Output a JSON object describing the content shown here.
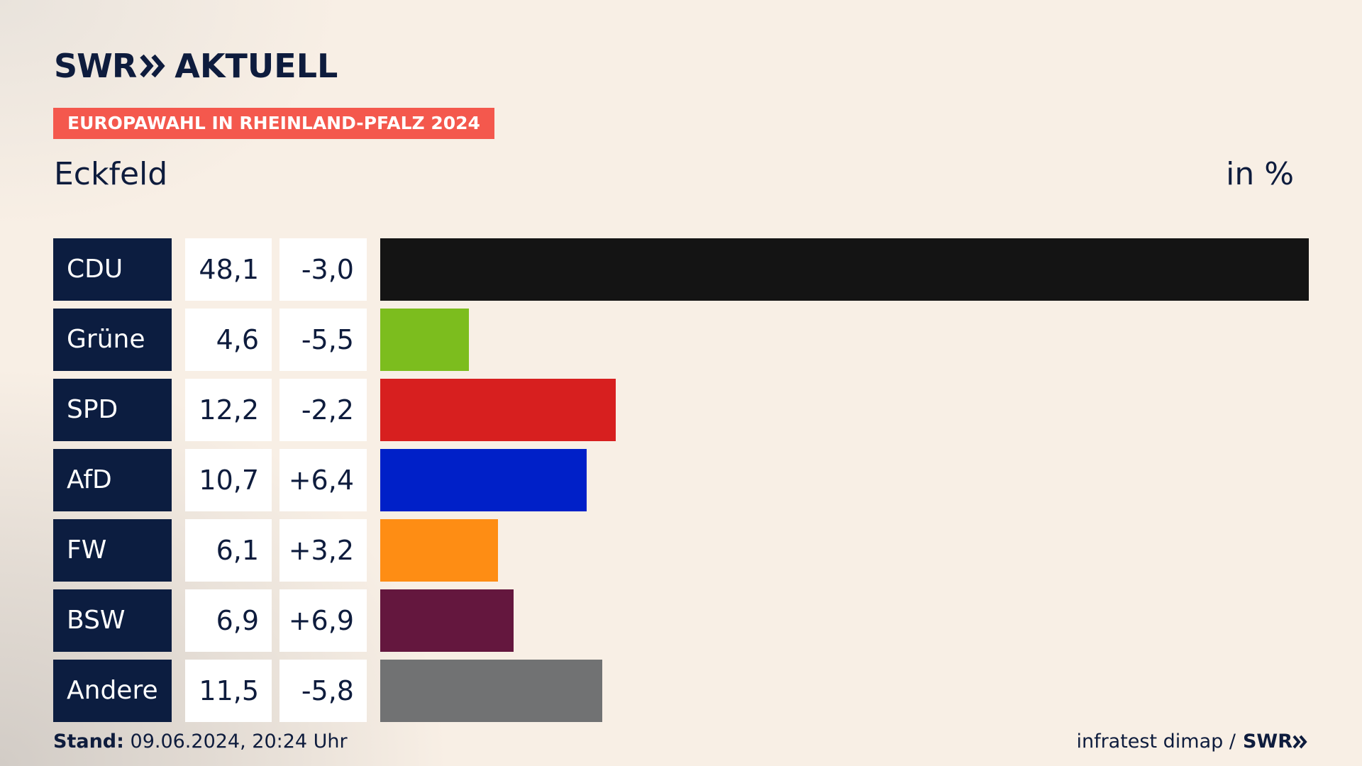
{
  "header": {
    "logo_swr": "SWR",
    "logo_aktuell": "AKTUELL",
    "badge": "EUROPAWAHL IN RHEINLAND-PFALZ 2024",
    "place": "Eckfeld",
    "unit": "in %"
  },
  "colors": {
    "navy": "#0c1d40",
    "badge": "#f4584d",
    "background": "#f8efe5"
  },
  "chart_data": {
    "type": "bar",
    "orientation": "horizontal",
    "categories": [
      "CDU",
      "Grüne",
      "SPD",
      "AfD",
      "FW",
      "BSW",
      "Andere"
    ],
    "values": [
      48.1,
      4.6,
      12.2,
      10.7,
      6.1,
      6.9,
      11.5
    ],
    "value_labels": [
      "48,1",
      "4,6",
      "12,2",
      "10,7",
      "6,1",
      "6,9",
      "11,5"
    ],
    "changes": [
      -3.0,
      -5.5,
      -2.2,
      6.4,
      3.2,
      6.9,
      -5.8
    ],
    "change_labels": [
      "-3,0",
      "-5,5",
      "-2,2",
      "+6,4",
      "+3,2",
      "+6,9",
      "-5,8"
    ],
    "colors": [
      "#141414",
      "#7cbd1e",
      "#d71f1f",
      "#0020c8",
      "#fe8d14",
      "#64173e",
      "#717273"
    ],
    "unit": "in %"
  },
  "footer": {
    "stand_label": "Stand:",
    "stand_value": "09.06.2024, 20:24 Uhr",
    "source": "infratest dimap /",
    "source_logo": "SWR"
  }
}
